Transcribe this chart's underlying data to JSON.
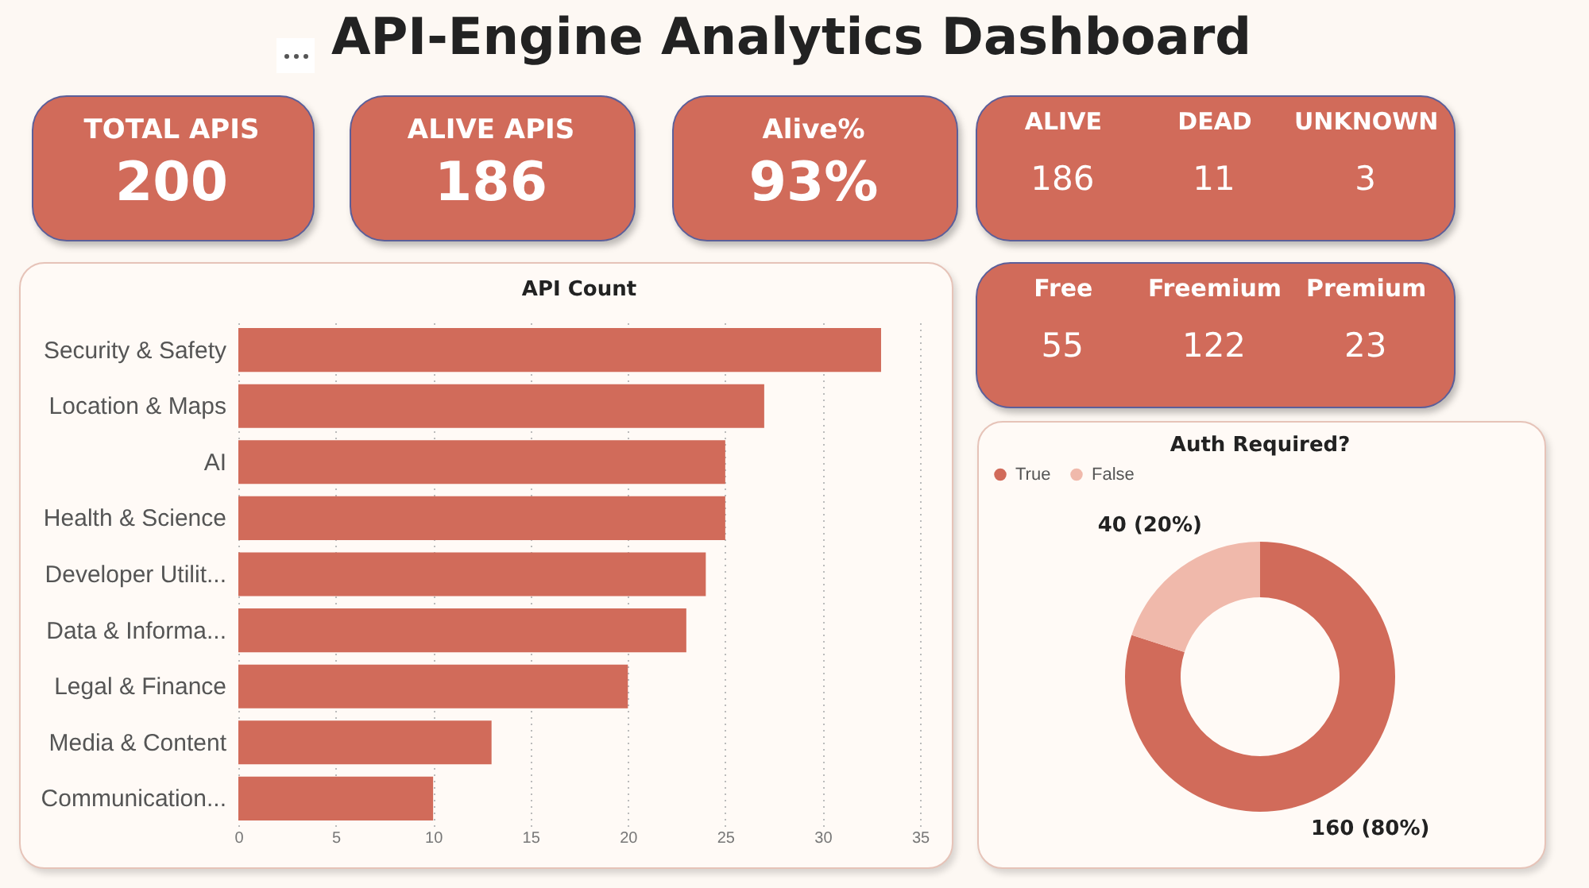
{
  "chart_data": [
    {
      "type": "other",
      "title": "API-Engine Analytics Dashboard"
    },
    {
      "type": "other",
      "title": "TOTAL APIS",
      "annotations": [
        "200"
      ],
      "color": "#d16b5a"
    },
    {
      "type": "other",
      "title": "ALIVE APIS",
      "annotations": [
        "186"
      ],
      "color": "#d16b5a"
    },
    {
      "type": "other",
      "title": "Alive%",
      "annotations": [
        "93%"
      ],
      "color": "#d16b5a"
    },
    {
      "type": "other",
      "categories": [
        "ALIVE",
        "DEAD",
        "UNKNOWN"
      ],
      "values": [
        186,
        11,
        3
      ],
      "data_labels": true,
      "color": "#d16b5a"
    },
    {
      "type": "bar",
      "orientation": "horizontal",
      "title": "API Count",
      "categories": [
        "Security & Safety",
        "Location & Maps",
        "AI",
        "Health & Science",
        "Developer Utilit...",
        "Data & Informa...",
        "Legal & Finance",
        "Media & Content",
        "Communication..."
      ],
      "values": [
        33,
        27,
        25,
        25,
        24,
        23,
        20,
        13,
        10
      ],
      "color": "#d16b5a",
      "xlim": [
        0,
        35
      ],
      "xticks": [
        0,
        5,
        10,
        15,
        20,
        25,
        30,
        35
      ],
      "grid": "x"
    },
    {
      "type": "other",
      "categories": [
        "Free",
        "Freemium",
        "Premium"
      ],
      "values": [
        55,
        122,
        23
      ],
      "data_labels": true,
      "color": "#d16b5a"
    },
    {
      "type": "donut",
      "title": "Auth Required?",
      "categories": [
        "True",
        "False"
      ],
      "values": [
        160,
        40
      ],
      "colors": [
        "#d16b5a",
        "#f0b9ab"
      ],
      "value_labels": [
        "160 (80%)",
        "40 (20%)"
      ],
      "legend": "top"
    }
  ]
}
